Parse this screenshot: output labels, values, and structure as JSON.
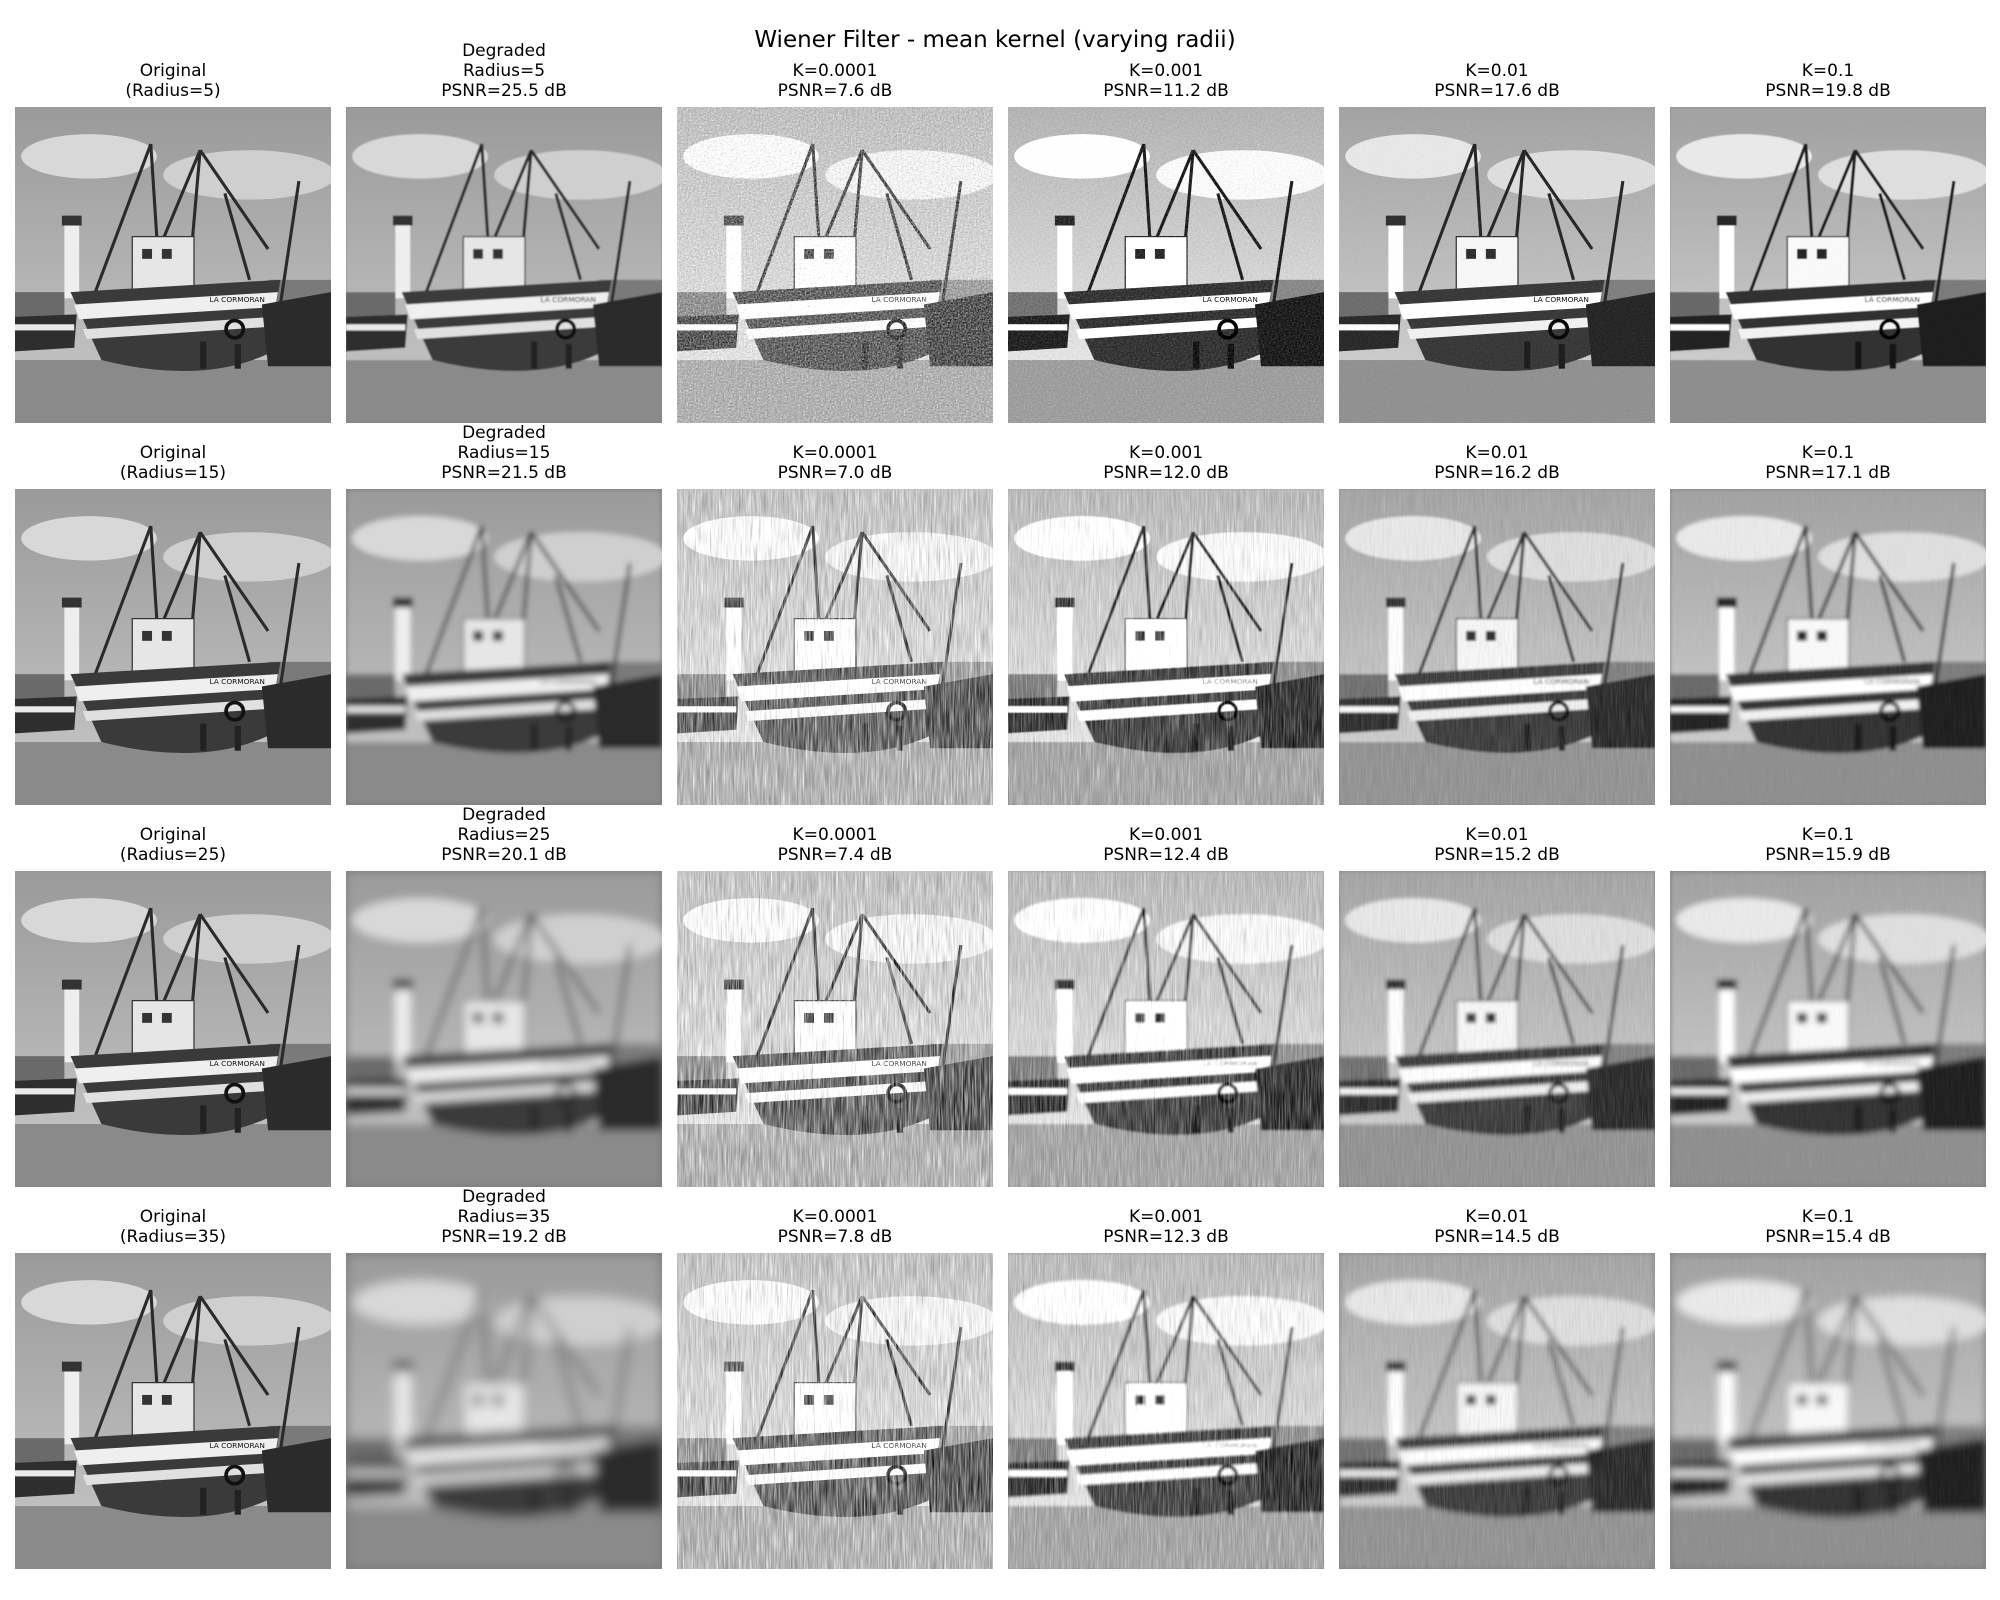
{
  "title": "Wiener Filter - mean kernel (varying radii)",
  "rows": [
    {
      "radius": 5,
      "panels": [
        {
          "kind": "original",
          "lines": [
            "Original",
            "(Radius=5)"
          ]
        },
        {
          "kind": "degraded",
          "lines": [
            "Degraded",
            "Radius=5",
            "PSNR=25.5 dB"
          ],
          "psnr_db": 25.5
        },
        {
          "kind": "restored",
          "lines": [
            "K=0.0001",
            "PSNR=7.6 dB"
          ],
          "K": 0.0001,
          "psnr_db": 7.6
        },
        {
          "kind": "restored",
          "lines": [
            "K=0.001",
            "PSNR=11.2 dB"
          ],
          "K": 0.001,
          "psnr_db": 11.2
        },
        {
          "kind": "restored",
          "lines": [
            "K=0.01",
            "PSNR=17.6 dB"
          ],
          "K": 0.01,
          "psnr_db": 17.6
        },
        {
          "kind": "restored",
          "lines": [
            "K=0.1",
            "PSNR=19.8 dB"
          ],
          "K": 0.1,
          "psnr_db": 19.8
        }
      ]
    },
    {
      "radius": 15,
      "panels": [
        {
          "kind": "original",
          "lines": [
            "Original",
            "(Radius=15)"
          ]
        },
        {
          "kind": "degraded",
          "lines": [
            "Degraded",
            "Radius=15",
            "PSNR=21.5 dB"
          ],
          "psnr_db": 21.5
        },
        {
          "kind": "restored",
          "lines": [
            "K=0.0001",
            "PSNR=7.0 dB"
          ],
          "K": 0.0001,
          "psnr_db": 7.0
        },
        {
          "kind": "restored",
          "lines": [
            "K=0.001",
            "PSNR=12.0 dB"
          ],
          "K": 0.001,
          "psnr_db": 12.0
        },
        {
          "kind": "restored",
          "lines": [
            "K=0.01",
            "PSNR=16.2 dB"
          ],
          "K": 0.01,
          "psnr_db": 16.2
        },
        {
          "kind": "restored",
          "lines": [
            "K=0.1",
            "PSNR=17.1 dB"
          ],
          "K": 0.1,
          "psnr_db": 17.1
        }
      ]
    },
    {
      "radius": 25,
      "panels": [
        {
          "kind": "original",
          "lines": [
            "Original",
            "(Radius=25)"
          ]
        },
        {
          "kind": "degraded",
          "lines": [
            "Degraded",
            "Radius=25",
            "PSNR=20.1 dB"
          ],
          "psnr_db": 20.1
        },
        {
          "kind": "restored",
          "lines": [
            "K=0.0001",
            "PSNR=7.4 dB"
          ],
          "K": 0.0001,
          "psnr_db": 7.4
        },
        {
          "kind": "restored",
          "lines": [
            "K=0.001",
            "PSNR=12.4 dB"
          ],
          "K": 0.001,
          "psnr_db": 12.4
        },
        {
          "kind": "restored",
          "lines": [
            "K=0.01",
            "PSNR=15.2 dB"
          ],
          "K": 0.01,
          "psnr_db": 15.2
        },
        {
          "kind": "restored",
          "lines": [
            "K=0.1",
            "PSNR=15.9 dB"
          ],
          "K": 0.1,
          "psnr_db": 15.9
        }
      ]
    },
    {
      "radius": 35,
      "panels": [
        {
          "kind": "original",
          "lines": [
            "Original",
            "(Radius=35)"
          ]
        },
        {
          "kind": "degraded",
          "lines": [
            "Degraded",
            "Radius=35",
            "PSNR=19.2 dB"
          ],
          "psnr_db": 19.2
        },
        {
          "kind": "restored",
          "lines": [
            "K=0.0001",
            "PSNR=7.8 dB"
          ],
          "K": 0.0001,
          "psnr_db": 7.8
        },
        {
          "kind": "restored",
          "lines": [
            "K=0.001",
            "PSNR=12.3 dB"
          ],
          "K": 0.001,
          "psnr_db": 12.3
        },
        {
          "kind": "restored",
          "lines": [
            "K=0.01",
            "PSNR=14.5 dB"
          ],
          "K": 0.01,
          "psnr_db": 14.5
        },
        {
          "kind": "restored",
          "lines": [
            "K=0.1",
            "PSNR=15.4 dB"
          ],
          "K": 0.1,
          "psnr_db": 15.4
        }
      ]
    }
  ],
  "boat_hull_text": "LA CORMORAN"
}
